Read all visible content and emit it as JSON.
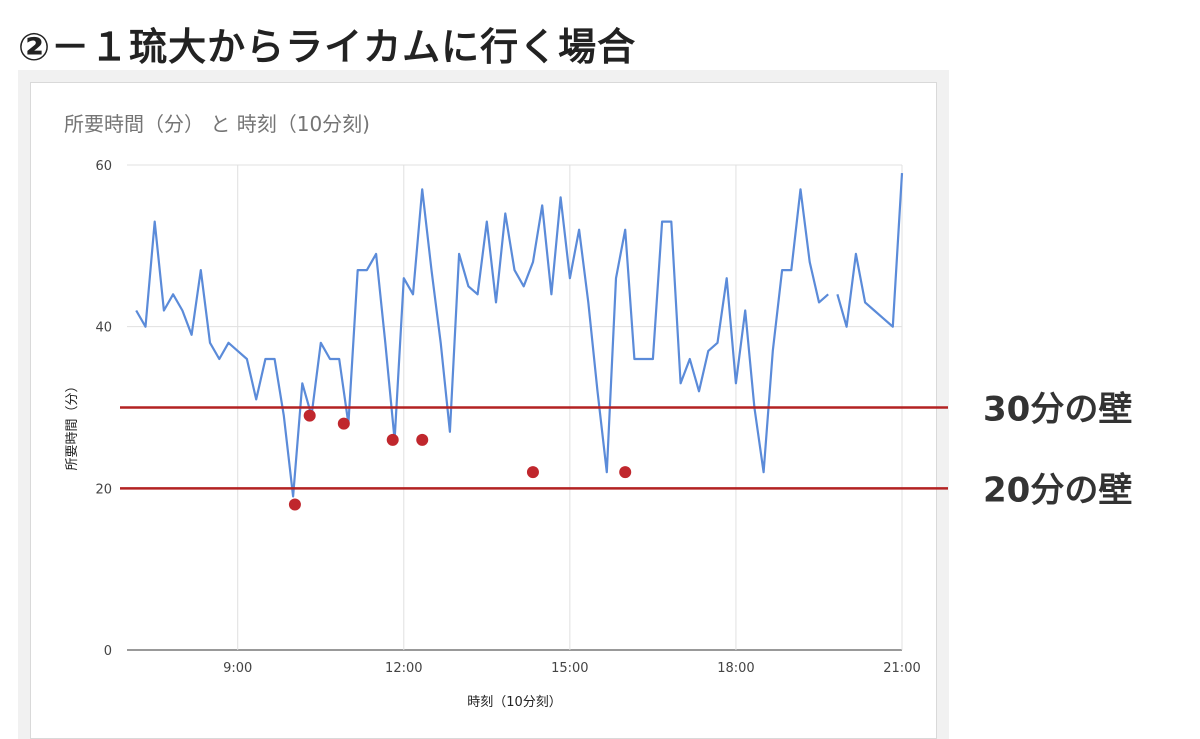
{
  "heading": "②－１琉大からライカムに行く場合",
  "colors": {
    "line": "#5b8bd9",
    "wall": "#b32222",
    "marker": "#c0272d",
    "grid": "#e0e0e0"
  },
  "chart_data": {
    "type": "line",
    "title": "所要時間（分） と 時刻（10分刻)",
    "xlabel": "時刻（10分刻）",
    "ylabel": "所要時間（分）",
    "ylim": [
      0,
      60
    ],
    "y_ticks": [
      "0",
      "20",
      "40",
      "60"
    ],
    "x_ticks": [
      {
        "label": "9:00",
        "minutes": 540
      },
      {
        "label": "12:00",
        "minutes": 720
      },
      {
        "label": "15:00",
        "minutes": 900
      },
      {
        "label": "18:00",
        "minutes": 1080
      },
      {
        "label": "21:00",
        "minutes": 1260
      }
    ],
    "x_range_minutes": [
      420,
      1260
    ],
    "grid": true,
    "series": [
      {
        "segments": [
          [
            [
              430,
              42
            ],
            [
              440,
              40
            ],
            [
              450,
              53
            ],
            [
              460,
              42
            ],
            [
              470,
              44
            ],
            [
              480,
              42
            ],
            [
              490,
              39
            ],
            [
              500,
              47
            ],
            [
              510,
              38
            ],
            [
              520,
              36
            ],
            [
              530,
              38
            ],
            [
              540,
              37
            ],
            [
              550,
              36
            ],
            [
              560,
              31
            ],
            [
              570,
              36
            ],
            [
              580,
              36
            ],
            [
              590,
              29
            ],
            [
              600,
              19
            ],
            [
              610,
              33
            ],
            [
              620,
              29
            ],
            [
              630,
              38
            ],
            [
              640,
              36
            ],
            [
              650,
              36
            ],
            [
              660,
              28
            ],
            [
              670,
              47
            ],
            [
              680,
              47
            ],
            [
              690,
              49
            ],
            [
              700,
              38
            ],
            [
              710,
              26
            ],
            [
              720,
              46
            ],
            [
              730,
              44
            ],
            [
              740,
              57
            ],
            [
              750,
              47
            ],
            [
              760,
              38
            ],
            [
              770,
              27
            ],
            [
              780,
              49
            ],
            [
              790,
              45
            ],
            [
              800,
              44
            ],
            [
              810,
              53
            ],
            [
              820,
              43
            ],
            [
              830,
              54
            ],
            [
              840,
              47
            ],
            [
              850,
              45
            ],
            [
              860,
              48
            ],
            [
              870,
              55
            ],
            [
              880,
              44
            ],
            [
              890,
              56
            ],
            [
              900,
              46
            ],
            [
              910,
              52
            ],
            [
              920,
              43
            ],
            [
              930,
              32
            ],
            [
              940,
              22
            ],
            [
              950,
              46
            ],
            [
              960,
              52
            ],
            [
              970,
              36
            ],
            [
              980,
              36
            ],
            [
              990,
              36
            ],
            [
              1000,
              53
            ],
            [
              1010,
              53
            ],
            [
              1020,
              33
            ],
            [
              1030,
              36
            ],
            [
              1040,
              32
            ],
            [
              1050,
              37
            ],
            [
              1060,
              38
            ],
            [
              1070,
              46
            ],
            [
              1080,
              33
            ],
            [
              1090,
              42
            ],
            [
              1100,
              30
            ],
            [
              1110,
              22
            ],
            [
              1120,
              37
            ],
            [
              1130,
              47
            ],
            [
              1140,
              47
            ],
            [
              1150,
              57
            ],
            [
              1160,
              48
            ],
            [
              1170,
              43
            ],
            [
              1180,
              44
            ]
          ],
          [
            [
              1190,
              44
            ],
            [
              1200,
              40
            ],
            [
              1210,
              49
            ],
            [
              1220,
              43
            ],
            [
              1230,
              42
            ],
            [
              1240,
              41
            ],
            [
              1250,
              40
            ],
            [
              1260,
              59
            ]
          ]
        ]
      }
    ],
    "annotations": {
      "walls": [
        {
          "value": 30,
          "label": "30分の壁"
        },
        {
          "value": 20,
          "label": "20分の壁"
        }
      ],
      "markers": [
        [
          602,
          18
        ],
        [
          618,
          29
        ],
        [
          655,
          28
        ],
        [
          708,
          26
        ],
        [
          740,
          26
        ],
        [
          860,
          22
        ],
        [
          960,
          22
        ]
      ]
    }
  }
}
